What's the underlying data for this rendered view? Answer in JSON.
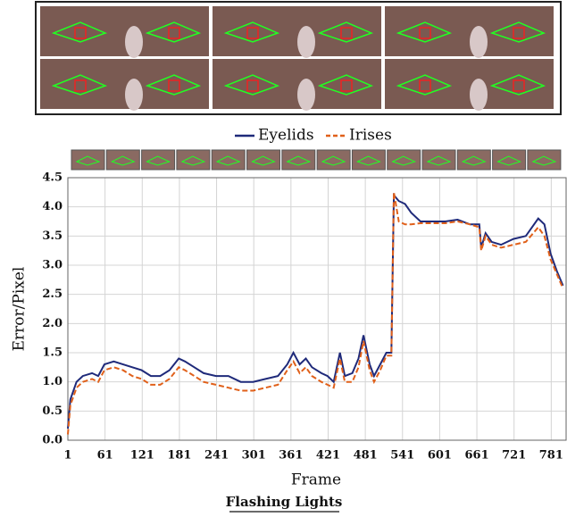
{
  "chart_data": {
    "type": "line",
    "title": "Flashing Lights",
    "xlabel": "Frame",
    "ylabel": "Error/Pixel",
    "x": [
      1,
      5,
      15,
      25,
      40,
      50,
      60,
      75,
      90,
      105,
      120,
      135,
      150,
      165,
      180,
      190,
      205,
      220,
      240,
      260,
      280,
      300,
      320,
      340,
      355,
      365,
      375,
      385,
      395,
      410,
      420,
      430,
      440,
      448,
      460,
      470,
      478,
      488,
      495,
      505,
      515,
      523,
      527,
      535,
      545,
      555,
      570,
      590,
      610,
      630,
      650,
      665,
      668,
      675,
      685,
      700,
      720,
      740,
      760,
      770,
      780,
      790,
      800
    ],
    "series": [
      {
        "name": "Eyelids",
        "color": "#1f2a7a",
        "dashed": false,
        "values": [
          0.2,
          0.7,
          1.0,
          1.1,
          1.15,
          1.1,
          1.3,
          1.35,
          1.3,
          1.25,
          1.2,
          1.1,
          1.1,
          1.2,
          1.4,
          1.35,
          1.25,
          1.15,
          1.1,
          1.1,
          1.0,
          1.0,
          1.05,
          1.1,
          1.3,
          1.5,
          1.3,
          1.4,
          1.25,
          1.15,
          1.1,
          1.0,
          1.5,
          1.1,
          1.15,
          1.4,
          1.8,
          1.3,
          1.1,
          1.3,
          1.5,
          1.5,
          4.2,
          4.1,
          4.05,
          3.9,
          3.75,
          3.75,
          3.75,
          3.78,
          3.7,
          3.7,
          3.3,
          3.55,
          3.4,
          3.35,
          3.45,
          3.5,
          3.8,
          3.7,
          3.2,
          2.9,
          2.65
        ]
      },
      {
        "name": "Irises",
        "color": "#e0601a",
        "dashed": true,
        "values": [
          0.1,
          0.6,
          0.9,
          1.0,
          1.05,
          1.0,
          1.2,
          1.25,
          1.2,
          1.1,
          1.05,
          0.95,
          0.95,
          1.05,
          1.25,
          1.2,
          1.1,
          1.0,
          0.95,
          0.9,
          0.85,
          0.85,
          0.9,
          0.95,
          1.2,
          1.35,
          1.15,
          1.25,
          1.1,
          1.0,
          0.95,
          0.9,
          1.4,
          1.0,
          1.0,
          1.25,
          1.7,
          1.2,
          1.0,
          1.2,
          1.45,
          1.45,
          4.25,
          3.75,
          3.7,
          3.7,
          3.72,
          3.72,
          3.72,
          3.75,
          3.7,
          3.65,
          3.25,
          3.5,
          3.35,
          3.3,
          3.35,
          3.4,
          3.65,
          3.5,
          3.1,
          2.85,
          2.6
        ]
      }
    ],
    "xlim": [
      1,
      805
    ],
    "ylim": [
      0,
      4.5
    ],
    "xticks": [
      1,
      61,
      121,
      181,
      241,
      301,
      361,
      421,
      481,
      541,
      601,
      661,
      721,
      781
    ],
    "yticks": [
      {
        "value": 0,
        "label": "0.0"
      },
      {
        "value": 0.5,
        "label": "0.5"
      },
      {
        "value": 1,
        "label": "1.0"
      },
      {
        "value": 1.5,
        "label": "1.5"
      },
      {
        "value": 2,
        "label": "2.0"
      },
      {
        "value": 2.5,
        "label": "2.5"
      },
      {
        "value": 3,
        "label": "3.0"
      },
      {
        "value": 3.5,
        "label": "3.5"
      },
      {
        "value": 4,
        "label": "4.0"
      },
      {
        "value": 4.5,
        "label": "4.5"
      }
    ],
    "grid": true,
    "legend": "top"
  }
}
